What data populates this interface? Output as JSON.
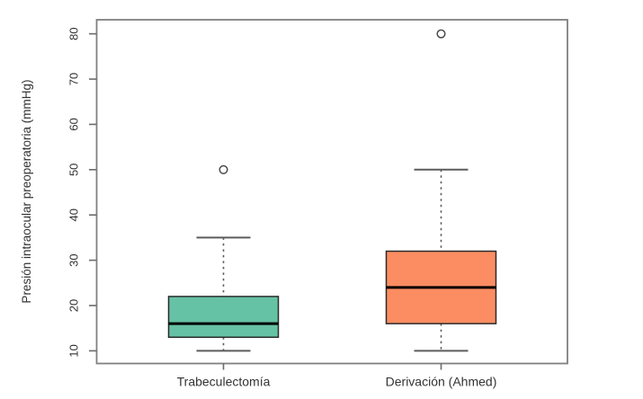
{
  "chart_data": {
    "type": "boxplot",
    "title": "",
    "xlabel": "",
    "ylabel": "Presión intraocular preoperatoria (mmHg)",
    "ylim": [
      7.2,
      83.1
    ],
    "yticks": [
      10,
      20,
      30,
      40,
      50,
      60,
      70,
      80
    ],
    "categories": [
      "Trabeculectomía",
      "Derivación (Ahmed)"
    ],
    "series": [
      {
        "name": "Trabeculectomía",
        "box_color": "#66C2A5",
        "whisker_low": 10,
        "q1": 13,
        "median": 16,
        "q3": 22,
        "whisker_high": 35,
        "outliers": [
          50
        ]
      },
      {
        "name": "Derivación (Ahmed)",
        "box_color": "#FC8D62",
        "whisker_low": 10,
        "q1": 16,
        "median": 24,
        "q3": 32,
        "whisker_high": 50,
        "outliers": [
          80
        ]
      }
    ],
    "grid": false,
    "legend": "none",
    "colors": {
      "background": "#ffffff",
      "frame": "#808080",
      "tick": "#6b6b6b",
      "whisker": "#5c5c5c",
      "box_border": "#2b2b2b",
      "median": "#000000",
      "outlier_stroke": "#4a4a4a",
      "text": "#333333"
    }
  }
}
